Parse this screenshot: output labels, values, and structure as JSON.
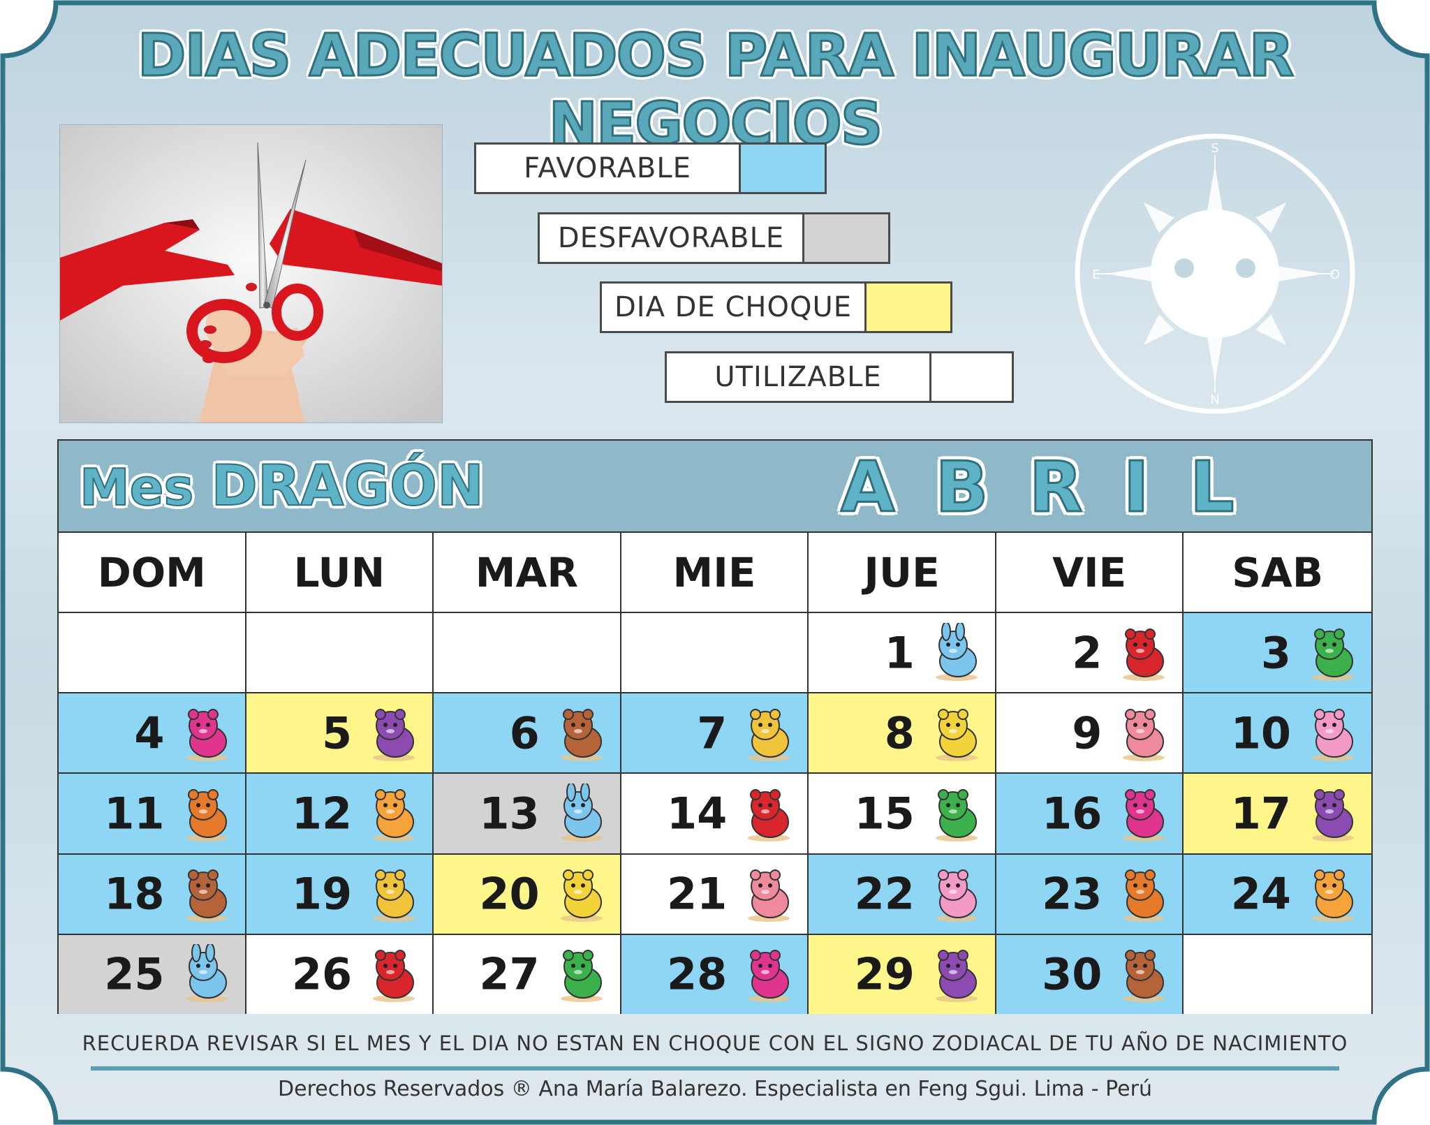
{
  "title": "DIAS ADECUADOS PARA INAUGURAR NEGOCIOS",
  "colors": {
    "favorable": "#8fd6f5",
    "desfavorable": "#d3d3d3",
    "choque": "#fef68a",
    "utilizable": "#ffffff",
    "accent": "#5aa9ba",
    "frame": "#2f7386"
  },
  "legend": {
    "favorable": "FAVORABLE",
    "desfavorable": "DESFAVORABLE",
    "choque": "DIA DE CHOQUE",
    "utilizable": "UTILIZABLE"
  },
  "compass": {
    "top": "S",
    "bottom": "N",
    "left": "E",
    "right": "O"
  },
  "calendar": {
    "mes_prefix": "Mes",
    "mes_name": "DRAGÓN",
    "month": "ABRIL",
    "weekdays": [
      "DOM",
      "LUN",
      "MAR",
      "MIE",
      "JUE",
      "VIE",
      "SAB"
    ],
    "cells": [
      {
        "day": "",
        "status": "blank",
        "animal": ""
      },
      {
        "day": "",
        "status": "blank",
        "animal": ""
      },
      {
        "day": "",
        "status": "blank",
        "animal": ""
      },
      {
        "day": "",
        "status": "blank",
        "animal": ""
      },
      {
        "day": "1",
        "status": "utilizable",
        "animal": "rabbit"
      },
      {
        "day": "2",
        "status": "utilizable",
        "animal": "dragon"
      },
      {
        "day": "3",
        "status": "favorable",
        "animal": "snake"
      },
      {
        "day": "4",
        "status": "favorable",
        "animal": "horse"
      },
      {
        "day": "5",
        "status": "choque",
        "animal": "goat"
      },
      {
        "day": "6",
        "status": "favorable",
        "animal": "monkey"
      },
      {
        "day": "7",
        "status": "favorable",
        "animal": "rooster"
      },
      {
        "day": "8",
        "status": "choque",
        "animal": "dog"
      },
      {
        "day": "9",
        "status": "utilizable",
        "animal": "pig"
      },
      {
        "day": "10",
        "status": "favorable",
        "animal": "rat"
      },
      {
        "day": "11",
        "status": "favorable",
        "animal": "ox"
      },
      {
        "day": "12",
        "status": "favorable",
        "animal": "tiger"
      },
      {
        "day": "13",
        "status": "desfavorable",
        "animal": "rabbit"
      },
      {
        "day": "14",
        "status": "utilizable",
        "animal": "dragon"
      },
      {
        "day": "15",
        "status": "utilizable",
        "animal": "snake"
      },
      {
        "day": "16",
        "status": "favorable",
        "animal": "horse"
      },
      {
        "day": "17",
        "status": "choque",
        "animal": "goat"
      },
      {
        "day": "18",
        "status": "favorable",
        "animal": "monkey"
      },
      {
        "day": "19",
        "status": "favorable",
        "animal": "rooster"
      },
      {
        "day": "20",
        "status": "choque",
        "animal": "dog"
      },
      {
        "day": "21",
        "status": "utilizable",
        "animal": "pig"
      },
      {
        "day": "22",
        "status": "favorable",
        "animal": "rat"
      },
      {
        "day": "23",
        "status": "favorable",
        "animal": "ox"
      },
      {
        "day": "24",
        "status": "favorable",
        "animal": "tiger"
      },
      {
        "day": "25",
        "status": "desfavorable",
        "animal": "rabbit"
      },
      {
        "day": "26",
        "status": "utilizable",
        "animal": "dragon"
      },
      {
        "day": "27",
        "status": "utilizable",
        "animal": "snake"
      },
      {
        "day": "28",
        "status": "favorable",
        "animal": "horse"
      },
      {
        "day": "29",
        "status": "choque",
        "animal": "goat"
      },
      {
        "day": "30",
        "status": "favorable",
        "animal": "monkey"
      },
      {
        "day": "",
        "status": "blank",
        "animal": ""
      }
    ]
  },
  "note": "RECUERDA REVISAR SI EL MES Y EL DIA NO ESTAN EN CHOQUE CON EL SIGNO ZODIACAL DE TU AÑO DE NACIMIENTO",
  "copyright": "Derechos Reservados ® Ana María Balarezo. Especialista en Feng Sgui. Lima - Perú"
}
